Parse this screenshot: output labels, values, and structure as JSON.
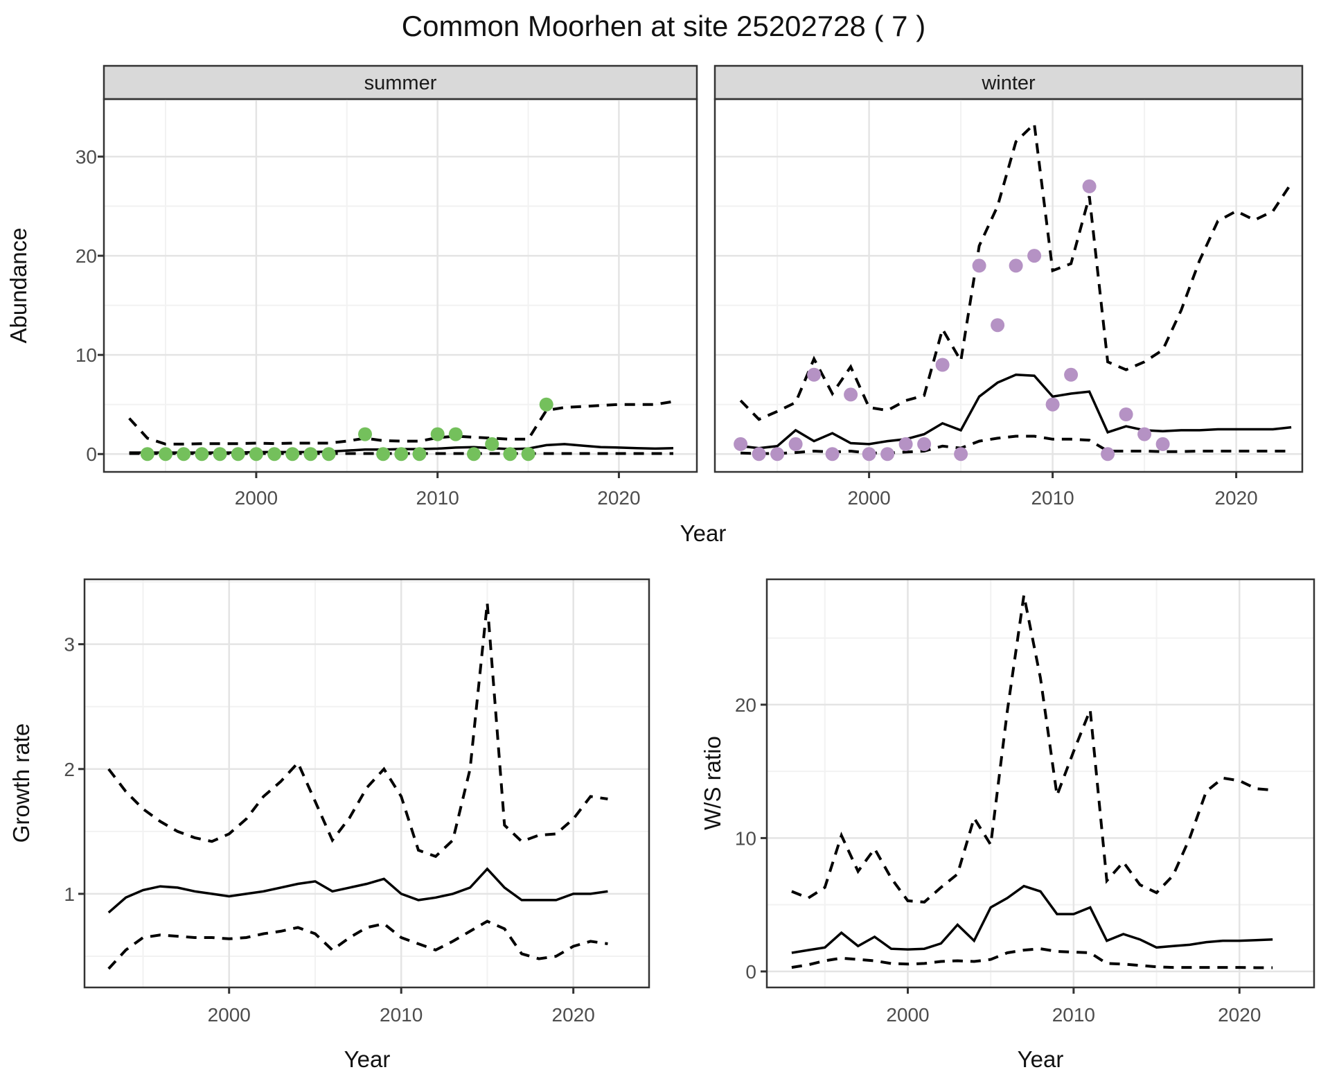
{
  "title": "Common Moorhen at site 25202728 ( 7 )",
  "colors": {
    "summer_point": "#74c05c",
    "winter_point": "#b592c4",
    "line": "#000000",
    "grid_major": "#e4e4e4",
    "grid_minor": "#f2f2f2",
    "strip_bg": "#d9d9d9",
    "panel_border": "#333333",
    "tick_label": "#4d4d4d"
  },
  "chart_data": [
    {
      "id": "summer",
      "type": "line",
      "facet_label": "summer",
      "xlabel": "Year",
      "ylabel": "Abundance",
      "xlim": [
        1991.6,
        2024.3
      ],
      "ylim": [
        -1.8,
        35.8
      ],
      "x_major": [
        2000,
        2010,
        2020
      ],
      "x_minor": [
        1995,
        2005,
        2015
      ],
      "y_major": [
        0,
        10,
        20,
        30
      ],
      "y_minor": [
        5,
        15,
        25
      ],
      "grid": true,
      "legend": "none",
      "x": [
        1993,
        1994,
        1995,
        1996,
        1997,
        1998,
        1999,
        2000,
        2001,
        2002,
        2003,
        2004,
        2005,
        2006,
        2007,
        2008,
        2009,
        2010,
        2011,
        2012,
        2013,
        2014,
        2015,
        2016,
        2017,
        2018,
        2019,
        2020,
        2021,
        2022,
        2023
      ],
      "series": [
        {
          "name": "median-fit",
          "style": "solid",
          "values": [
            0.15,
            0.15,
            0.15,
            0.15,
            0.15,
            0.15,
            0.15,
            0.2,
            0.2,
            0.2,
            0.2,
            0.25,
            0.35,
            0.45,
            0.45,
            0.5,
            0.5,
            0.55,
            0.65,
            0.7,
            0.6,
            0.5,
            0.55,
            0.9,
            1.0,
            0.85,
            0.7,
            0.65,
            0.6,
            0.55,
            0.6
          ]
        },
        {
          "name": "upper-95ci",
          "style": "dashed",
          "values": [
            3.6,
            1.6,
            1.0,
            1.0,
            1.05,
            1.05,
            1.05,
            1.1,
            1.05,
            1.1,
            1.1,
            1.1,
            1.3,
            1.6,
            1.35,
            1.3,
            1.3,
            1.65,
            1.8,
            1.7,
            1.6,
            1.5,
            1.5,
            4.4,
            4.7,
            4.8,
            4.9,
            5.0,
            5.0,
            5.0,
            5.3
          ]
        },
        {
          "name": "lower-95ci",
          "style": "dashed",
          "values": [
            0.05,
            0.05,
            0.05,
            0.05,
            0.05,
            0.05,
            0.05,
            0.05,
            0.05,
            0.05,
            0.05,
            0.05,
            0.05,
            0.05,
            0.05,
            0.05,
            0.05,
            0.05,
            0.05,
            0.05,
            0.05,
            0.05,
            0.05,
            0.05,
            0.05,
            0.05,
            0.05,
            0.05,
            0.05,
            0.05,
            0.05
          ]
        }
      ],
      "points": {
        "name": "observed-count",
        "color_key": "summer_point",
        "x": [
          1994,
          1995,
          1996,
          1997,
          1998,
          1999,
          2000,
          2001,
          2002,
          2003,
          2004,
          2006,
          2007,
          2008,
          2009,
          2010,
          2011,
          2012,
          2013,
          2014,
          2015,
          2016
        ],
        "values": [
          0,
          0,
          0,
          0,
          0,
          0,
          0,
          0,
          0,
          0,
          0,
          2,
          0,
          0,
          0,
          2,
          2,
          0,
          1,
          0,
          0,
          5
        ]
      }
    },
    {
      "id": "winter",
      "type": "line",
      "facet_label": "winter",
      "xlabel": "Year",
      "ylabel": "",
      "xlim": [
        1991.6,
        2023.6
      ],
      "ylim": [
        -1.8,
        35.8
      ],
      "x_major": [
        2000,
        2010,
        2020
      ],
      "x_minor": [
        1995,
        2005,
        2015
      ],
      "y_major": [
        0,
        10,
        20,
        30
      ],
      "y_minor": [
        5,
        15,
        25
      ],
      "grid": true,
      "legend": "none",
      "x": [
        1993,
        1994,
        1995,
        1996,
        1997,
        1998,
        1999,
        2000,
        2001,
        2002,
        2003,
        2004,
        2005,
        2006,
        2007,
        2008,
        2009,
        2010,
        2011,
        2012,
        2013,
        2014,
        2015,
        2016,
        2017,
        2018,
        2019,
        2020,
        2021,
        2022,
        2023
      ],
      "series": [
        {
          "name": "median-fit",
          "style": "solid",
          "values": [
            0.8,
            0.6,
            0.8,
            2.4,
            1.3,
            2.1,
            1.1,
            1.0,
            1.3,
            1.5,
            2.0,
            3.1,
            2.4,
            5.8,
            7.2,
            8.0,
            7.9,
            5.8,
            6.1,
            6.3,
            2.2,
            2.8,
            2.4,
            2.3,
            2.4,
            2.4,
            2.5,
            2.5,
            2.5,
            2.5,
            2.7
          ]
        },
        {
          "name": "upper-95ci",
          "style": "dashed",
          "values": [
            5.4,
            3.5,
            4.3,
            5.2,
            9.6,
            6.1,
            8.8,
            4.7,
            4.4,
            5.4,
            5.9,
            12.6,
            9.4,
            21.0,
            25.0,
            31.5,
            33.3,
            18.5,
            19.2,
            26.0,
            9.3,
            8.5,
            9.3,
            10.5,
            14.5,
            19.5,
            23.5,
            24.5,
            23.6,
            24.5,
            27.3
          ]
        },
        {
          "name": "lower-95ci",
          "style": "dashed",
          "values": [
            0.1,
            0.05,
            0.05,
            0.15,
            0.3,
            0.2,
            0.3,
            0.1,
            0.1,
            0.2,
            0.3,
            0.8,
            0.6,
            1.3,
            1.6,
            1.8,
            1.8,
            1.5,
            1.5,
            1.4,
            0.3,
            0.3,
            0.3,
            0.25,
            0.25,
            0.3,
            0.3,
            0.3,
            0.3,
            0.3,
            0.3
          ]
        }
      ],
      "points": {
        "name": "observed-count",
        "color_key": "winter_point",
        "x": [
          1993,
          1994,
          1995,
          1996,
          1997,
          1998,
          1999,
          2000,
          2001,
          2002,
          2003,
          2004,
          2005,
          2006,
          2007,
          2008,
          2009,
          2010,
          2011,
          2012,
          2013,
          2014,
          2015,
          2016
        ],
        "values": [
          1,
          0,
          0,
          1,
          8,
          0,
          6,
          0,
          0,
          1,
          1,
          9,
          0,
          19,
          13,
          19,
          20,
          5,
          8,
          27,
          0,
          4,
          2,
          1
        ]
      }
    },
    {
      "id": "growth",
      "type": "line",
      "facet_label": "",
      "xlabel": "Year",
      "ylabel": "Growth rate",
      "xlim": [
        1991.6,
        2024.4
      ],
      "ylim": [
        0.25,
        3.52
      ],
      "x_major": [
        2000,
        2010,
        2020
      ],
      "x_minor": [
        1995,
        2005,
        2015
      ],
      "y_major": [
        1,
        2,
        3
      ],
      "y_minor": [
        0.5,
        1.5,
        2.5,
        3.5
      ],
      "grid": true,
      "legend": "none",
      "x": [
        1993,
        1994,
        1995,
        1996,
        1997,
        1998,
        1999,
        2000,
        2001,
        2002,
        2003,
        2004,
        2005,
        2006,
        2007,
        2008,
        2009,
        2010,
        2011,
        2012,
        2013,
        2014,
        2015,
        2016,
        2017,
        2018,
        2019,
        2020,
        2021,
        2022
      ],
      "series": [
        {
          "name": "median-growth",
          "style": "solid",
          "values": [
            0.85,
            0.97,
            1.03,
            1.06,
            1.05,
            1.02,
            1.0,
            0.98,
            1.0,
            1.02,
            1.05,
            1.08,
            1.1,
            1.02,
            1.05,
            1.08,
            1.12,
            1.0,
            0.95,
            0.97,
            1.0,
            1.05,
            1.2,
            1.05,
            0.95,
            0.95,
            0.95,
            1.0,
            1.0,
            1.02
          ]
        },
        {
          "name": "upper-95ci",
          "style": "dashed",
          "values": [
            2.0,
            1.82,
            1.68,
            1.58,
            1.5,
            1.45,
            1.42,
            1.48,
            1.6,
            1.78,
            1.9,
            2.05,
            1.74,
            1.43,
            1.61,
            1.85,
            2.0,
            1.78,
            1.35,
            1.3,
            1.43,
            2.0,
            3.33,
            1.55,
            1.42,
            1.47,
            1.48,
            1.6,
            1.78,
            1.76
          ]
        },
        {
          "name": "lower-95ci",
          "style": "dashed",
          "values": [
            0.4,
            0.55,
            0.65,
            0.67,
            0.66,
            0.65,
            0.65,
            0.64,
            0.65,
            0.68,
            0.7,
            0.73,
            0.68,
            0.55,
            0.65,
            0.73,
            0.76,
            0.65,
            0.6,
            0.55,
            0.62,
            0.7,
            0.78,
            0.72,
            0.52,
            0.48,
            0.5,
            0.58,
            0.62,
            0.6
          ]
        }
      ]
    },
    {
      "id": "ws",
      "type": "line",
      "facet_label": "",
      "xlabel": "Year",
      "ylabel": "W/S ratio",
      "xlim": [
        1991.5,
        2024.5
      ],
      "ylim": [
        -1.2,
        29.4
      ],
      "x_major": [
        2000,
        2010,
        2020
      ],
      "x_minor": [
        1995,
        2005,
        2015
      ],
      "y_major": [
        0,
        10,
        20
      ],
      "y_minor": [
        5,
        15,
        25
      ],
      "grid": true,
      "legend": "none",
      "x": [
        1993,
        1994,
        1995,
        1996,
        1997,
        1998,
        1999,
        2000,
        2001,
        2002,
        2003,
        2004,
        2005,
        2006,
        2007,
        2008,
        2009,
        2010,
        2011,
        2012,
        2013,
        2014,
        2015,
        2016,
        2017,
        2018,
        2019,
        2020,
        2021,
        2022
      ],
      "series": [
        {
          "name": "median-ratio",
          "style": "solid",
          "values": [
            1.4,
            1.6,
            1.8,
            2.9,
            1.9,
            2.6,
            1.7,
            1.65,
            1.7,
            2.1,
            3.5,
            2.3,
            4.8,
            5.5,
            6.4,
            6.0,
            4.3,
            4.3,
            4.8,
            2.3,
            2.8,
            2.4,
            1.8,
            1.9,
            2.0,
            2.2,
            2.3,
            2.3,
            2.35,
            2.4
          ]
        },
        {
          "name": "upper-95ci",
          "style": "dashed",
          "values": [
            6.0,
            5.5,
            6.3,
            10.2,
            7.5,
            9.2,
            7.0,
            5.3,
            5.2,
            6.3,
            7.3,
            11.5,
            9.5,
            19.5,
            28.2,
            22.0,
            13.2,
            16.5,
            19.6,
            6.8,
            8.2,
            6.5,
            5.9,
            7.2,
            10.0,
            13.5,
            14.5,
            14.3,
            13.7,
            13.6
          ]
        },
        {
          "name": "lower-95ci",
          "style": "dashed",
          "values": [
            0.3,
            0.5,
            0.8,
            1.0,
            0.9,
            0.8,
            0.6,
            0.55,
            0.6,
            0.75,
            0.8,
            0.75,
            0.9,
            1.4,
            1.6,
            1.7,
            1.5,
            1.45,
            1.4,
            0.6,
            0.55,
            0.45,
            0.35,
            0.3,
            0.3,
            0.3,
            0.3,
            0.3,
            0.28,
            0.28
          ]
        }
      ]
    }
  ]
}
